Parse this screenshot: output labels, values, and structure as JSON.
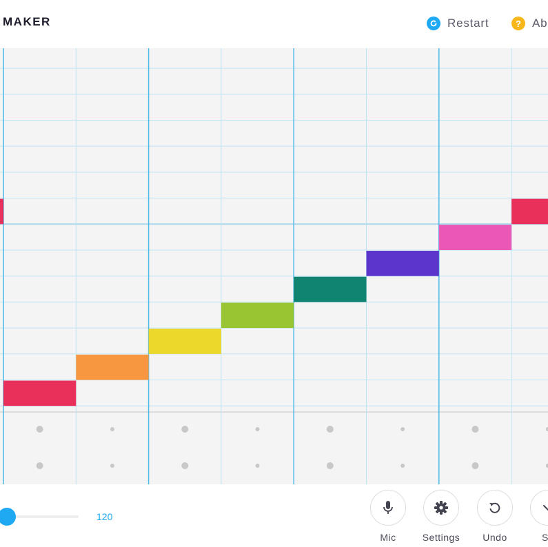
{
  "header": {
    "title": "MAKER",
    "restart_label": "Restart",
    "about_label": "Ab",
    "restart_icon": "refresh-icon",
    "about_icon": "question-icon",
    "restart_icon_color": "#1fa9f2",
    "about_icon_color": "#f7b718"
  },
  "grid": {
    "columns": 8,
    "rows": 14,
    "visible_pitch_rows": 14,
    "notes": [
      {
        "column": 0,
        "row": 7,
        "color": "#e8305a"
      },
      {
        "column": 0,
        "row": 14,
        "color": "#e8305a"
      },
      {
        "column": 1,
        "row": 13,
        "color": "#f79840"
      },
      {
        "column": 2,
        "row": 12,
        "color": "#ecd82a"
      },
      {
        "column": 3,
        "row": 11,
        "color": "#98c531"
      },
      {
        "column": 4,
        "row": 10,
        "color": "#108470"
      },
      {
        "column": 5,
        "row": 9,
        "color": "#5c35cc"
      },
      {
        "column": 6,
        "row": 8,
        "color": "#ea57b4"
      },
      {
        "column": 7,
        "row": 7,
        "color": "#e8305a"
      }
    ],
    "rhythm_rows": 2,
    "line_color": "#bde4f4",
    "bar_line_color": "#4cb9e8",
    "background": "#f4f4f4"
  },
  "tempo": {
    "value": "120",
    "accent": "#1fa9f2"
  },
  "toolbar": {
    "mic_label": "Mic",
    "settings_label": "Settings",
    "undo_label": "Undo",
    "save_label": "Sa"
  }
}
